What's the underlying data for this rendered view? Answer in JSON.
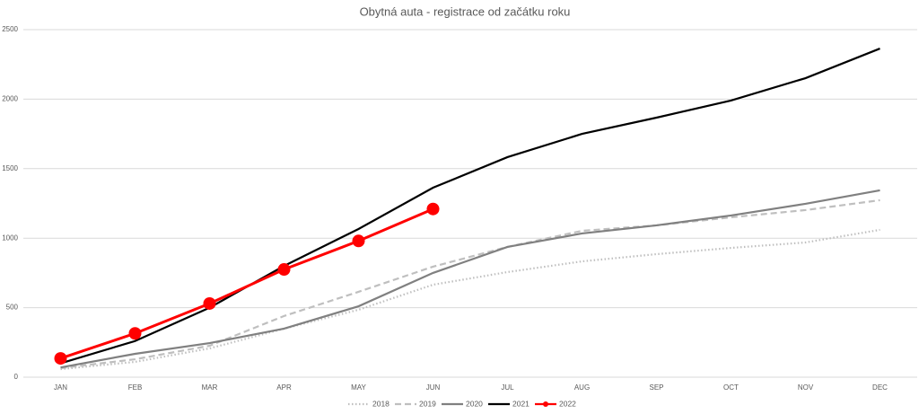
{
  "chart_data": {
    "type": "line",
    "title": "Obytná auta - registrace od začátku roku",
    "categories": [
      "JAN",
      "FEB",
      "MAR",
      "APR",
      "MAY",
      "JUN",
      "JUL",
      "AUG",
      "SEP",
      "OCT",
      "NOV",
      "DEC"
    ],
    "ylim": [
      0,
      2500
    ],
    "yticks": [
      0,
      500,
      1000,
      1500,
      2000,
      2500
    ],
    "grid": true,
    "legend": "bottom",
    "series": [
      {
        "name": "2018",
        "color": "#bfbfbf",
        "style": "dotted",
        "values": [
          58,
          110,
          207,
          349,
          485,
          665,
          756,
          833,
          885,
          930,
          969,
          1060
        ]
      },
      {
        "name": "2019",
        "color": "#bfbfbf",
        "style": "dashed",
        "values": [
          65,
          129,
          226,
          440,
          614,
          795,
          937,
          1053,
          1092,
          1150,
          1202,
          1273
        ]
      },
      {
        "name": "2020",
        "color": "#808080",
        "style": "solid",
        "values": [
          70,
          168,
          245,
          349,
          510,
          750,
          937,
          1034,
          1092,
          1163,
          1247,
          1344
        ]
      },
      {
        "name": "2021",
        "color": "#000000",
        "style": "solid",
        "values": [
          100,
          260,
          500,
          800,
          1066,
          1363,
          1583,
          1750,
          1867,
          1990,
          2151,
          2364
        ]
      },
      {
        "name": "2022",
        "color": "#ff0000",
        "style": "solid",
        "marker": true,
        "values": [
          135,
          315,
          530,
          775,
          980,
          1210,
          null,
          null,
          null,
          null,
          null,
          null
        ]
      }
    ]
  }
}
